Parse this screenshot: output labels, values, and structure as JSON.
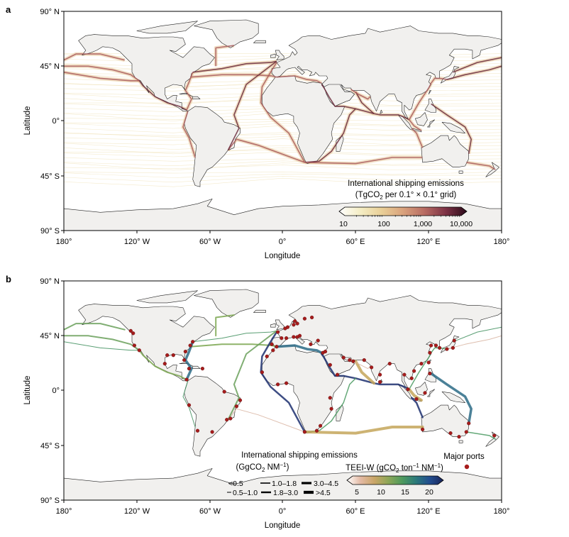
{
  "panel_a": {
    "letter": "a",
    "lat_ticks": [
      "90° N",
      "45° N",
      "0°",
      "45° S",
      "90° S"
    ],
    "lon_ticks": [
      "180°",
      "120° W",
      "60° W",
      "0°",
      "60° E",
      "120° E",
      "180°"
    ],
    "ylabel": "Latitude",
    "xlabel": "Longitude",
    "legend": {
      "title_line1": "International shipping emissions",
      "title_line2_pre": "(TgCO",
      "title_line2_sub": "2",
      "title_line2_post": " per 0.1° × 0.1° grid)",
      "tick_labels": [
        "10",
        "100",
        "1,000",
        "10,000"
      ],
      "colors": [
        "#ffffff",
        "#f4edc4",
        "#e9cf97",
        "#d9a27c",
        "#b86c63",
        "#7e3346",
        "#2c0b1a"
      ]
    }
  },
  "panel_b": {
    "letter": "b",
    "lat_ticks": [
      "90° N",
      "45° N",
      "0°",
      "45° S",
      "90° S"
    ],
    "lon_ticks": [
      "180°",
      "120° W",
      "60° W",
      "0°",
      "60° E",
      "120° E",
      "180°"
    ],
    "ylabel": "Latitude",
    "xlabel": "Longitude",
    "legend_emissions": {
      "title_line1": "International shipping emissions",
      "title_line2_pre": "(GgCO",
      "title_line2_sub": "2",
      "title_line2_post": " NM",
      "title_line2_sup": "−1",
      "title_line2_end": ")",
      "classes": [
        "<0.5",
        "1.0–1.8",
        "3.0–4.5",
        "0.5–1.0",
        "1.8–3.0",
        ">4.5"
      ]
    },
    "legend_teei": {
      "title_pre": "TEEI-W (gCO",
      "title_sub": "2",
      "title_mid": " ton",
      "title_sup1": "−1",
      "title_mid2": " NM",
      "title_sup2": "−1",
      "title_end": ")",
      "tick_labels": [
        "5",
        "10",
        "15",
        "20"
      ],
      "colors": [
        "#ffffff",
        "#e3b9a3",
        "#c9a567",
        "#8da657",
        "#4f9a5d",
        "#2c7a7a",
        "#224d8f",
        "#1a2559"
      ]
    },
    "legend_ports": {
      "label": "Major ports",
      "color": "#a61c1c"
    }
  },
  "colors": {
    "land": "#f1f0ee",
    "ocean": "#ffffff",
    "coast": "#222222",
    "frame": "#000000"
  }
}
